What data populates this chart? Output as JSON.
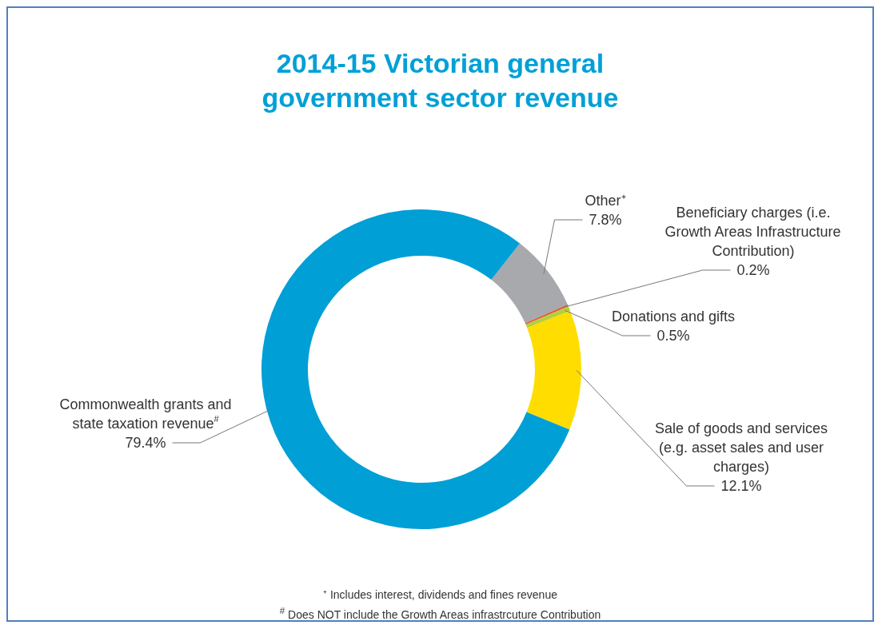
{
  "chart_data": {
    "type": "donut",
    "title": "2014-15 Victorian general government sector revenue",
    "categories": [
      "Other⁺",
      "Beneficiary charges (i.e. Growth Areas Infrastructure Contribution)",
      "Donations and gifts",
      "Sale of goods and services (e.g. asset sales and user charges)",
      "Commonwealth grants and state taxation revenue$^{#}$"
    ],
    "values": [
      7.8,
      0.2,
      0.5,
      12.1,
      79.4
    ],
    "value_labels": [
      "7.8%",
      "0.2%",
      "0.5%",
      "12.1%",
      "79.4%"
    ],
    "colors": [
      "#a7a9ac",
      "#e8503a",
      "#b5cf3a",
      "#ffdd00",
      "#009fd6"
    ],
    "legend": false,
    "annotations": [
      "⁺ Includes interest, dividends and fines revenue",
      "$^{#}$ Does NOT include the Growth Areas infrastrcuture Contribution"
    ]
  }
}
